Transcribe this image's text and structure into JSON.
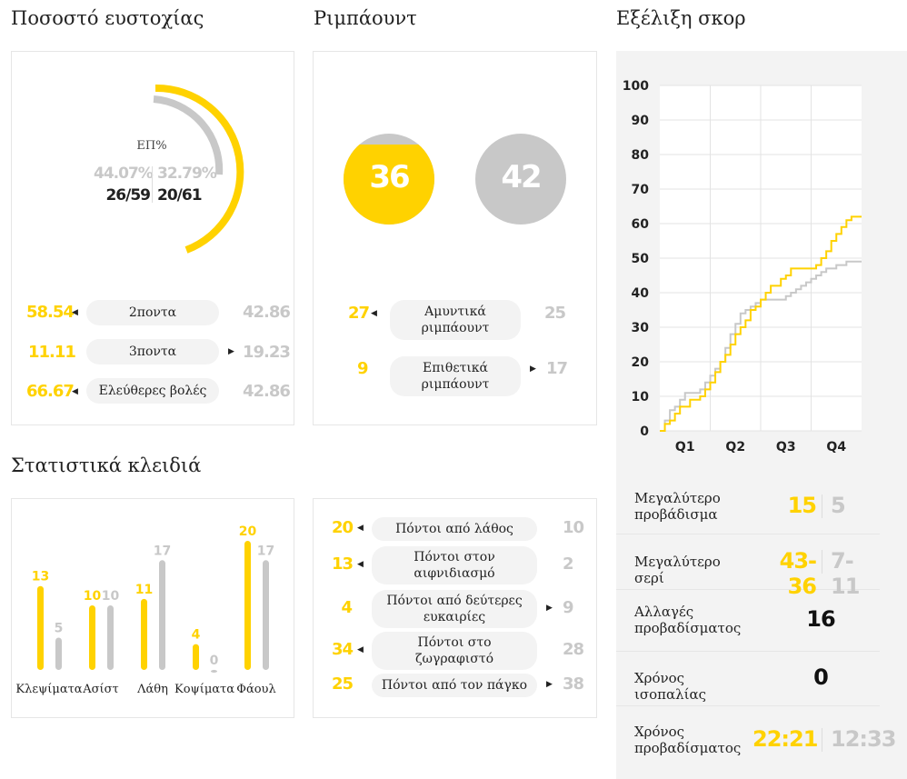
{
  "sections": {
    "shooting": "Ποσοστό ευστοχίας",
    "rebounds": "Ριμπάουντ",
    "score_evolution": "Εξέλιξη σκορ",
    "key_stats": "Στατιστικά κλειδιά"
  },
  "shooting": {
    "center_label": "ΕΠ%",
    "home_pct": "44.07%",
    "away_pct": "32.79%",
    "home_made": "26/59",
    "away_made": "20/61",
    "home_fraction": 0.4407,
    "away_fraction": 0.3279,
    "rows": [
      {
        "home": "58.54",
        "label": "2ποντα",
        "away": "42.86",
        "leader": "home"
      },
      {
        "home": "11.11",
        "label": "3ποντα",
        "away": "19.23",
        "leader": "away"
      },
      {
        "home": "66.67",
        "label": "Ελεύθερες βολές",
        "away": "42.86",
        "leader": "home"
      }
    ]
  },
  "rebounds": {
    "home_total": "36",
    "away_total": "42",
    "rows": [
      {
        "home": "27",
        "label_1": "Αμυντικά",
        "label_2": "ριμπάουντ",
        "away": "25",
        "leader": "home"
      },
      {
        "home": "9",
        "label_1": "Επιθετικά",
        "label_2": "ριμπάουντ",
        "away": "17",
        "leader": "away"
      }
    ]
  },
  "key_stats": {
    "chart_data": {
      "type": "bar",
      "categories": [
        "Κλεψίματα",
        "Ασίστ",
        "Λάθη",
        "Κοψίματα",
        "Φάουλ"
      ],
      "series": [
        {
          "values": [
            13,
            10,
            11,
            4,
            20
          ]
        },
        {
          "values": [
            5,
            10,
            17,
            0,
            17
          ]
        }
      ]
    }
  },
  "points": {
    "rows": [
      {
        "home": "20",
        "label_1": "Πόντοι από λάθος",
        "label_2": "",
        "away": "10",
        "leader": "home"
      },
      {
        "home": "13",
        "label_1": "Πόντοι στον",
        "label_2": "αιφνιδιασμό",
        "away": "2",
        "leader": "home"
      },
      {
        "home": "4",
        "label_1": "Πόντοι από δεύτερες",
        "label_2": "ευκαιρίες",
        "away": "9",
        "leader": "away"
      },
      {
        "home": "34",
        "label_1": "Πόντοι στο",
        "label_2": "ζωγραφιστό",
        "away": "28",
        "leader": "home"
      },
      {
        "home": "25",
        "label_1": "Πόντοι από τον πάγκο",
        "label_2": "",
        "away": "38",
        "leader": "away"
      }
    ]
  },
  "score_chart": {
    "chart_data": {
      "type": "line",
      "ylim": [
        0,
        100
      ],
      "yticks": [
        "100",
        "90",
        "80",
        "70",
        "60",
        "50",
        "40",
        "30",
        "20",
        "10",
        "0"
      ],
      "xticks": [
        "Q1",
        "Q2",
        "Q3",
        "Q4"
      ],
      "series": [
        {
          "color": "#ffd200",
          "points": [
            [
              0,
              0
            ],
            [
              1,
              2
            ],
            [
              2,
              3
            ],
            [
              3,
              5
            ],
            [
              4,
              7
            ],
            [
              5,
              7
            ],
            [
              6,
              9
            ],
            [
              7,
              9
            ],
            [
              8,
              10
            ],
            [
              9,
              12
            ],
            [
              10,
              14
            ],
            [
              11,
              17
            ],
            [
              12,
              20
            ],
            [
              13,
              22
            ],
            [
              14,
              25
            ],
            [
              15,
              28
            ],
            [
              16,
              30
            ],
            [
              17,
              32
            ],
            [
              18,
              35
            ],
            [
              19,
              36
            ],
            [
              20,
              38
            ],
            [
              21,
              40
            ],
            [
              22,
              42
            ],
            [
              23,
              42
            ],
            [
              24,
              44
            ],
            [
              25,
              45
            ],
            [
              26,
              47
            ],
            [
              27,
              47
            ],
            [
              28,
              47
            ],
            [
              29,
              47
            ],
            [
              30,
              47
            ],
            [
              31,
              48
            ],
            [
              32,
              50
            ],
            [
              33,
              52
            ],
            [
              34,
              55
            ],
            [
              35,
              57
            ],
            [
              36,
              59
            ],
            [
              37,
              61
            ],
            [
              38,
              62
            ],
            [
              40,
              62
            ]
          ]
        },
        {
          "color": "#c8c8c8",
          "points": [
            [
              0,
              0
            ],
            [
              1,
              3
            ],
            [
              2,
              6
            ],
            [
              3,
              7
            ],
            [
              4,
              9
            ],
            [
              5,
              11
            ],
            [
              6,
              11
            ],
            [
              7,
              11
            ],
            [
              8,
              12
            ],
            [
              9,
              14
            ],
            [
              10,
              16
            ],
            [
              11,
              18
            ],
            [
              12,
              20
            ],
            [
              13,
              24
            ],
            [
              14,
              28
            ],
            [
              15,
              31
            ],
            [
              16,
              34
            ],
            [
              17,
              35
            ],
            [
              18,
              36
            ],
            [
              19,
              37
            ],
            [
              20,
              38
            ],
            [
              21,
              38
            ],
            [
              22,
              38
            ],
            [
              23,
              38
            ],
            [
              24,
              38
            ],
            [
              25,
              39
            ],
            [
              26,
              40
            ],
            [
              27,
              41
            ],
            [
              28,
              42
            ],
            [
              29,
              43
            ],
            [
              30,
              44
            ],
            [
              31,
              45
            ],
            [
              32,
              46
            ],
            [
              33,
              47
            ],
            [
              34,
              47
            ],
            [
              35,
              48
            ],
            [
              36,
              48
            ],
            [
              37,
              49
            ],
            [
              38,
              49
            ],
            [
              40,
              49
            ]
          ]
        }
      ]
    }
  },
  "summary": [
    {
      "label_1": "Μεγαλύτερο",
      "label_2": "προβάδισμα",
      "home": "15",
      "away": "5"
    },
    {
      "label_1": "Μεγαλύτερο σερί",
      "label_2": "",
      "home": "43-36",
      "away": "7-11"
    },
    {
      "label_1": "Αλλαγές",
      "label_2": "προβαδίσματος",
      "value": "16"
    },
    {
      "label_1": "Χρόνος ισοπαλίας",
      "label_2": "",
      "value": "0"
    },
    {
      "label_1": "Χρόνος",
      "label_2": "προβαδίσματος",
      "home": "22:21",
      "away": "12:33"
    }
  ],
  "colors": {
    "home": "#ffd200",
    "away": "#c8c8c8"
  }
}
